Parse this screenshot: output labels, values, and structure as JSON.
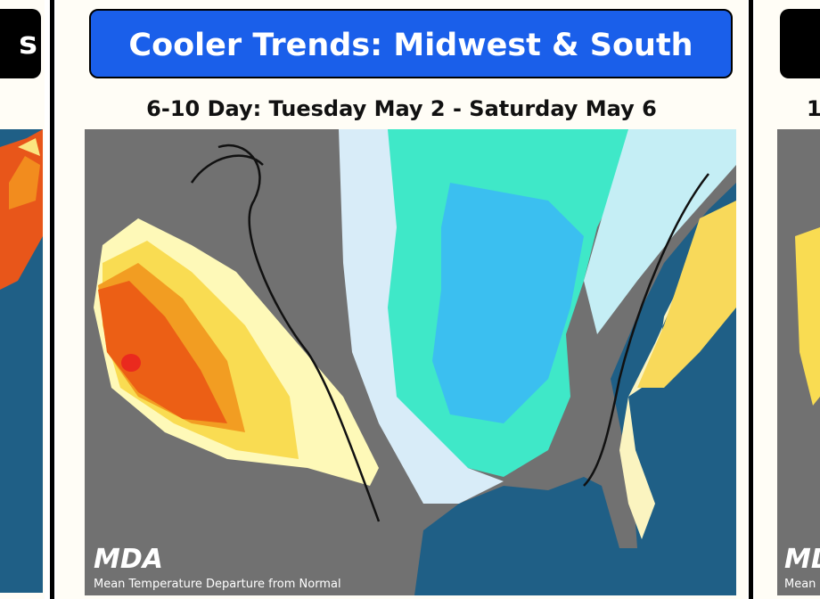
{
  "left_panel": {
    "title": "s"
  },
  "center_panel": {
    "title": "Cooler Trends: Midwest & South",
    "subtitle": "6-10 Day: Tuesday May 2 - Saturday May 6",
    "logo": "MDA",
    "caption": "Mean Temperature Departure from Normal"
  },
  "right_panel": {
    "subtitle": "1",
    "logo": "MDA",
    "caption": "Mean"
  }
}
